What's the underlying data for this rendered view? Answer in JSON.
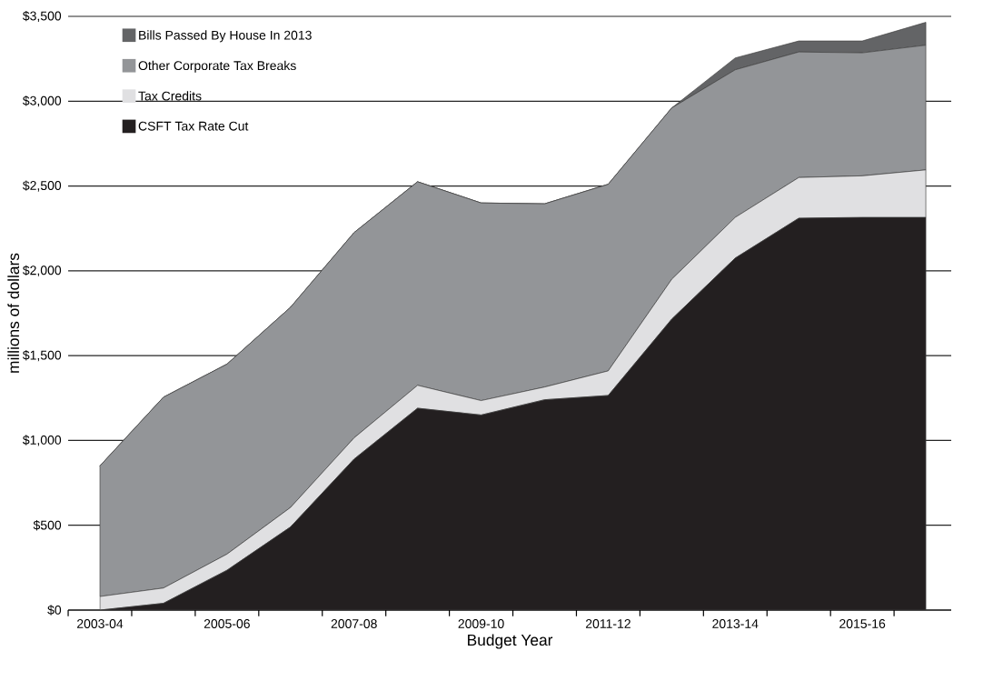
{
  "chart_data": {
    "type": "area",
    "stacked": true,
    "xlabel": "Budget Year",
    "ylabel": "millions of dollars",
    "categories": [
      "2003-04",
      null,
      "2005-06",
      null,
      "2007-08",
      null,
      "2009-10",
      null,
      "2011-12",
      null,
      "2013-14",
      null,
      "2015-16",
      null
    ],
    "series": [
      {
        "name": "CSFT Tax Rate Cut",
        "color": "#231f20",
        "values": [
          0,
          40,
          235,
          490,
          890,
          1190,
          1150,
          1240,
          1265,
          1715,
          2075,
          2310,
          2315,
          2315
        ]
      },
      {
        "name": "Tax Credits",
        "color": "#e0e0e2",
        "values": [
          80,
          90,
          95,
          115,
          125,
          135,
          85,
          75,
          145,
          235,
          240,
          240,
          245,
          280
        ]
      },
      {
        "name": "Other Corporate Tax Breaks",
        "color": "#939598",
        "values": [
          770,
          1125,
          1120,
          1180,
          1210,
          1200,
          1165,
          1080,
          1100,
          1010,
          870,
          740,
          725,
          735
        ]
      },
      {
        "name": "Bills Passed By House In 2013",
        "color": "#636466",
        "values": [
          0,
          0,
          0,
          0,
          0,
          0,
          0,
          0,
          0,
          0,
          70,
          65,
          70,
          135
        ]
      }
    ],
    "ylim": [
      0,
      3500
    ],
    "yticks": [
      {
        "value": 0,
        "label": "$0"
      },
      {
        "value": 500,
        "label": "$500"
      },
      {
        "value": 1000,
        "label": "$1,000"
      },
      {
        "value": 1500,
        "label": "$1,500"
      },
      {
        "value": 2000,
        "label": "$2,000"
      },
      {
        "value": 2500,
        "label": "$2,500"
      },
      {
        "value": 3000,
        "label": "$3,000"
      },
      {
        "value": 3500,
        "label": "$3,500"
      }
    ],
    "grid": "y",
    "legend": "top left"
  }
}
